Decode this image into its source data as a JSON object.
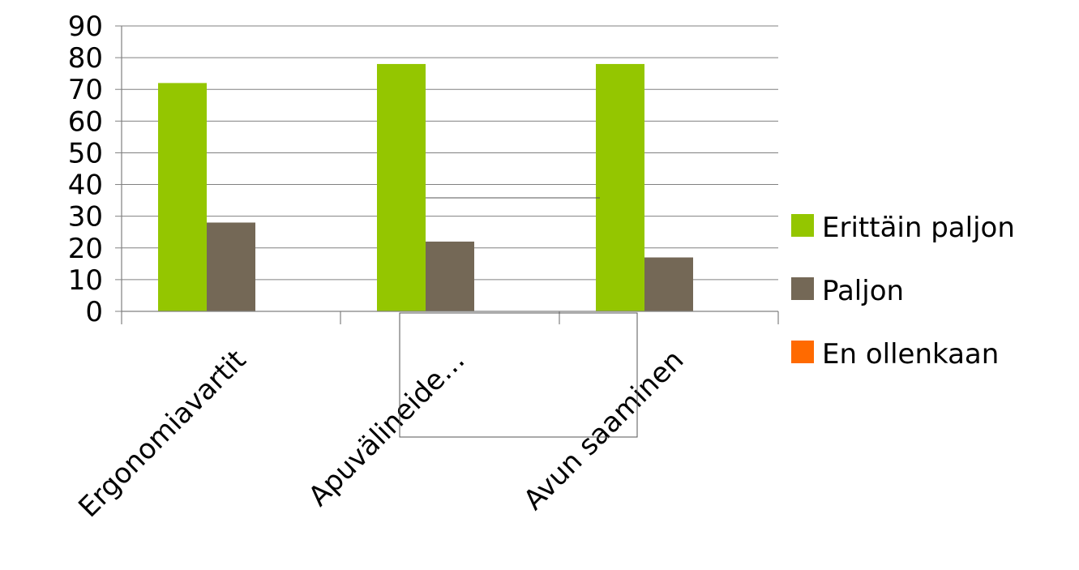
{
  "chart_data": {
    "type": "bar",
    "title": "",
    "xlabel": "",
    "ylabel": "",
    "ylim": [
      0,
      90
    ],
    "yticks": [
      0,
      10,
      20,
      30,
      40,
      50,
      60,
      70,
      80,
      90
    ],
    "grid": true,
    "legend_position": "right",
    "categories": [
      "Ergonomiavartit",
      "Apuvälineide…",
      "Avun saaminen"
    ],
    "series": [
      {
        "name": "Erittäin paljon",
        "color": "#94c600",
        "values": [
          72,
          78,
          78
        ]
      },
      {
        "name": "Paljon",
        "color": "#746856",
        "values": [
          28,
          22,
          17
        ]
      },
      {
        "name": "En ollenkaan",
        "color": "#ff6a00",
        "values": [
          0,
          0,
          0
        ]
      }
    ]
  }
}
